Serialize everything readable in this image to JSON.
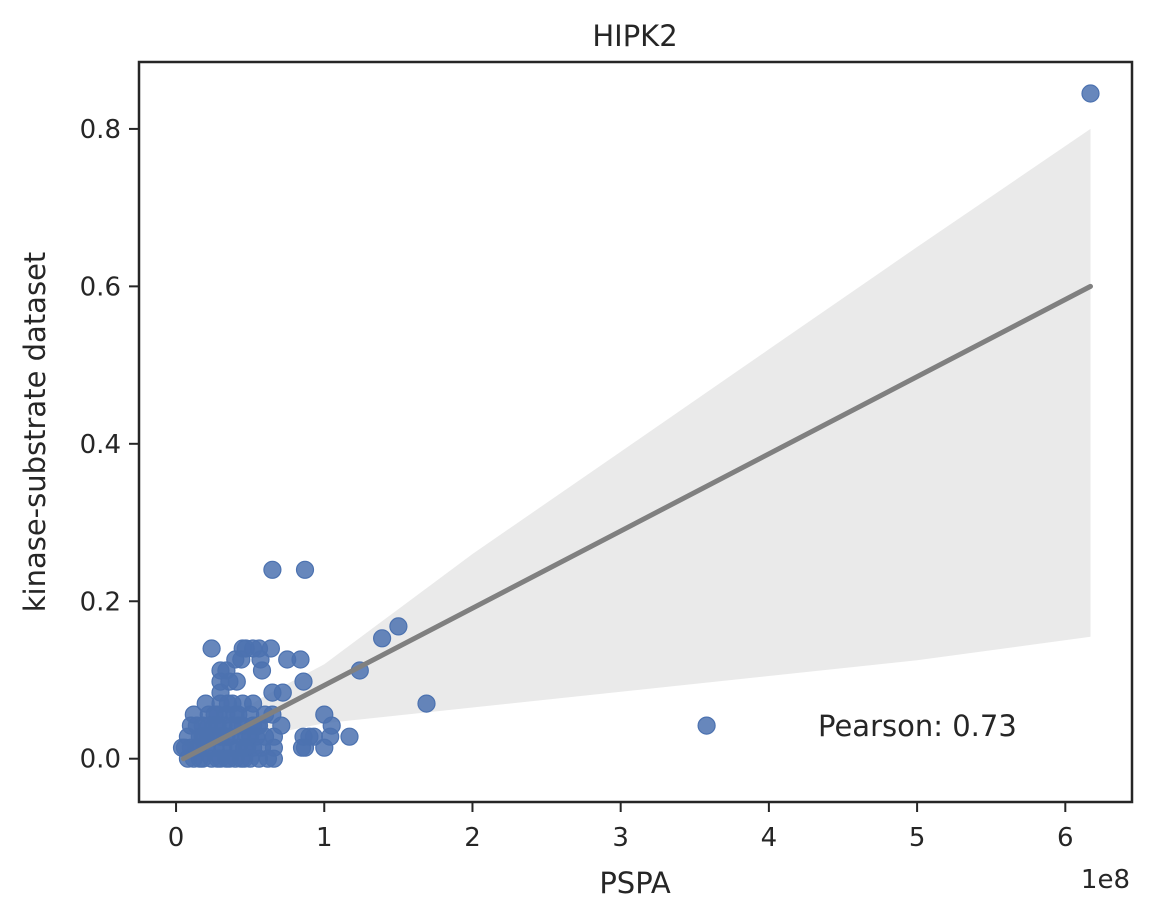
{
  "chart_data": {
    "type": "scatter",
    "title": "HIPK2",
    "xlabel": "PSPA",
    "ylabel": "kinase-substrate dataset",
    "x_offset_label": "1e8",
    "annotation": "Pearson: 0.73",
    "xlim": [
      -0.25,
      6.45
    ],
    "ylim": [
      -0.055,
      0.885
    ],
    "x_ticks": [
      0,
      1,
      2,
      3,
      4,
      5,
      6
    ],
    "x_tick_labels": [
      "0",
      "1",
      "2",
      "3",
      "4",
      "5",
      "6"
    ],
    "y_ticks": [
      0.0,
      0.2,
      0.4,
      0.6,
      0.8
    ],
    "y_tick_labels": [
      "0.0",
      "0.2",
      "0.4",
      "0.6",
      "0.8"
    ],
    "grid": false,
    "colors": {
      "points": "#4c72b0",
      "regression": "#808080",
      "ci_band": "#e8e8e8",
      "axes": "#262626"
    },
    "regression": {
      "x": [
        0.05,
        6.17
      ],
      "y": [
        0.0,
        0.6
      ],
      "ci_x": [
        0.05,
        0.3,
        0.6,
        1.0,
        1.5,
        2.0,
        3.0,
        4.0,
        5.0,
        6.17
      ],
      "ci_upper": [
        0.01,
        0.045,
        0.08,
        0.12,
        0.19,
        0.26,
        0.39,
        0.52,
        0.65,
        0.8
      ],
      "ci_lower": [
        -0.01,
        0.012,
        0.03,
        0.045,
        0.055,
        0.065,
        0.085,
        0.105,
        0.125,
        0.155
      ]
    },
    "series": [
      {
        "name": "HIPK2",
        "x_scale": "1e8",
        "points": [
          [
            6.17,
            0.845
          ],
          [
            3.58,
            0.042
          ],
          [
            1.69,
            0.07
          ],
          [
            1.5,
            0.168
          ],
          [
            1.39,
            0.153
          ],
          [
            1.24,
            0.112
          ],
          [
            1.17,
            0.028
          ],
          [
            1.05,
            0.042
          ],
          [
            1.04,
            0.028
          ],
          [
            1.0,
            0.056
          ],
          [
            1.0,
            0.014
          ],
          [
            0.93,
            0.028
          ],
          [
            0.9,
            0.028
          ],
          [
            0.87,
            0.014
          ],
          [
            0.85,
            0.014
          ],
          [
            0.86,
            0.028
          ],
          [
            0.86,
            0.098
          ],
          [
            0.84,
            0.126
          ],
          [
            0.75,
            0.126
          ],
          [
            0.87,
            0.24
          ],
          [
            0.65,
            0.24
          ],
          [
            0.72,
            0.084
          ],
          [
            0.71,
            0.042
          ],
          [
            0.65,
            0.084
          ],
          [
            0.65,
            0.056
          ],
          [
            0.66,
            0.028
          ],
          [
            0.66,
            0.014
          ],
          [
            0.66,
            0.0
          ],
          [
            0.64,
            0.14
          ],
          [
            0.56,
            0.14
          ],
          [
            0.57,
            0.126
          ],
          [
            0.58,
            0.112
          ],
          [
            0.52,
            0.14
          ],
          [
            0.47,
            0.14
          ],
          [
            0.45,
            0.14
          ],
          [
            0.44,
            0.126
          ],
          [
            0.4,
            0.126
          ],
          [
            0.41,
            0.098
          ],
          [
            0.36,
            0.098
          ],
          [
            0.34,
            0.112
          ],
          [
            0.3,
            0.112
          ],
          [
            0.3,
            0.098
          ],
          [
            0.24,
            0.14
          ],
          [
            0.3,
            0.084
          ],
          [
            0.35,
            0.07
          ],
          [
            0.45,
            0.07
          ],
          [
            0.52,
            0.07
          ],
          [
            0.6,
            0.056
          ],
          [
            0.56,
            0.042
          ],
          [
            0.5,
            0.028
          ],
          [
            0.45,
            0.042
          ],
          [
            0.42,
            0.056
          ],
          [
            0.38,
            0.042
          ],
          [
            0.34,
            0.056
          ],
          [
            0.3,
            0.028
          ],
          [
            0.28,
            0.042
          ],
          [
            0.26,
            0.056
          ],
          [
            0.22,
            0.056
          ],
          [
            0.2,
            0.07
          ],
          [
            0.18,
            0.042
          ],
          [
            0.16,
            0.028
          ],
          [
            0.14,
            0.042
          ],
          [
            0.12,
            0.056
          ],
          [
            0.1,
            0.042
          ],
          [
            0.1,
            0.014
          ],
          [
            0.08,
            0.028
          ],
          [
            0.06,
            0.014
          ],
          [
            0.04,
            0.014
          ],
          [
            0.08,
            0.0
          ],
          [
            0.12,
            0.0
          ],
          [
            0.15,
            0.014
          ],
          [
            0.18,
            0.0
          ],
          [
            0.2,
            0.014
          ],
          [
            0.22,
            0.028
          ],
          [
            0.24,
            0.0
          ],
          [
            0.26,
            0.014
          ],
          [
            0.28,
            0.0
          ],
          [
            0.32,
            0.014
          ],
          [
            0.34,
            0.0
          ],
          [
            0.36,
            0.028
          ],
          [
            0.38,
            0.014
          ],
          [
            0.4,
            0.0
          ],
          [
            0.42,
            0.014
          ],
          [
            0.44,
            0.028
          ],
          [
            0.46,
            0.0
          ],
          [
            0.48,
            0.014
          ],
          [
            0.5,
            0.0
          ],
          [
            0.52,
            0.014
          ],
          [
            0.54,
            0.028
          ],
          [
            0.56,
            0.0
          ],
          [
            0.58,
            0.014
          ],
          [
            0.6,
            0.028
          ],
          [
            0.62,
            0.0
          ],
          [
            0.55,
            0.042
          ],
          [
            0.5,
            0.056
          ],
          [
            0.4,
            0.056
          ],
          [
            0.32,
            0.042
          ],
          [
            0.26,
            0.042
          ],
          [
            0.2,
            0.028
          ],
          [
            0.16,
            0.0
          ],
          [
            0.24,
            0.028
          ],
          [
            0.3,
            0.0
          ],
          [
            0.36,
            0.0
          ],
          [
            0.44,
            0.0
          ],
          [
            0.48,
            0.028
          ],
          [
            0.38,
            0.07
          ],
          [
            0.28,
            0.056
          ],
          [
            0.22,
            0.042
          ],
          [
            0.34,
            0.028
          ],
          [
            0.42,
            0.042
          ],
          [
            0.46,
            0.014
          ],
          [
            0.52,
            0.042
          ],
          [
            0.14,
            0.014
          ],
          [
            0.18,
            0.028
          ],
          [
            0.3,
            0.07
          ]
        ]
      }
    ]
  }
}
